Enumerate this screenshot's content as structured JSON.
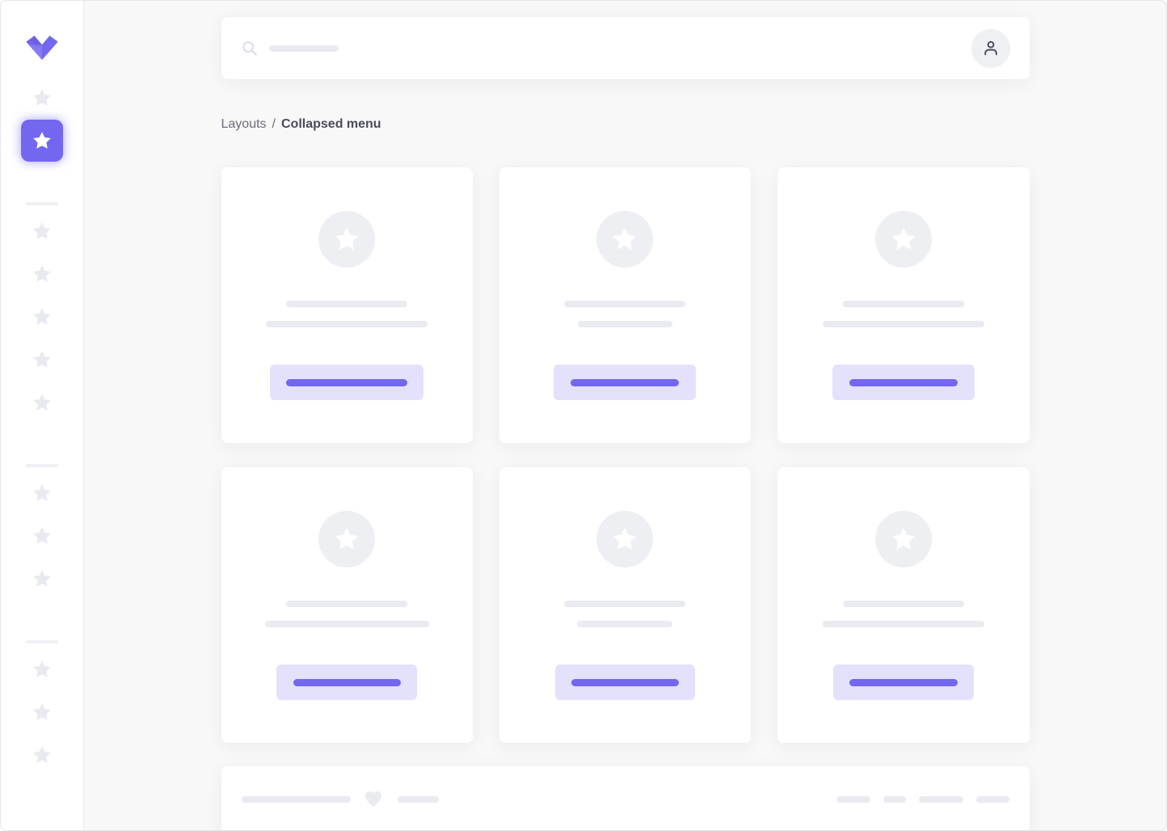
{
  "colors": {
    "primary": "#7367f0",
    "primary_soft": "#e4e1fc",
    "page_bg": "#f8f8f8",
    "surface": "#ffffff",
    "placeholder": "#e9ebf1",
    "placeholder_soft": "#eef0f4",
    "avatar_bg": "#edeff3",
    "star_muted": "#e8eaef",
    "text_muted": "#6e6b7b",
    "text_heading": "#4b4b5e",
    "border": "#ebe9f1"
  },
  "sidebar": {
    "logo_icon": "vuexy-v-logo",
    "sections": [
      {
        "items": [
          {
            "icon": "star",
            "active": false
          },
          {
            "icon": "star",
            "active": true
          }
        ]
      },
      {
        "items": [
          {
            "icon": "star"
          },
          {
            "icon": "star"
          },
          {
            "icon": "star"
          },
          {
            "icon": "star"
          },
          {
            "icon": "star"
          }
        ]
      },
      {
        "items": [
          {
            "icon": "star"
          },
          {
            "icon": "star"
          },
          {
            "icon": "star"
          }
        ]
      },
      {
        "items": [
          {
            "icon": "star"
          },
          {
            "icon": "star"
          },
          {
            "icon": "star"
          }
        ]
      }
    ]
  },
  "topbar": {
    "search_icon": "search",
    "search_line_w": 86,
    "avatar_icon": "person"
  },
  "breadcrumb": {
    "parent": "Layouts",
    "separator": "/",
    "current": "Collapsed menu"
  },
  "cards": [
    {
      "icon": "star",
      "title_w": 150,
      "subtitle_w": 200,
      "button_w": 190,
      "button_line_w": 150
    },
    {
      "icon": "star",
      "title_w": 150,
      "subtitle_w": 117,
      "button_w": 176,
      "button_line_w": 134
    },
    {
      "icon": "star",
      "title_w": 150,
      "subtitle_w": 200,
      "button_w": 176,
      "button_line_w": 134
    },
    {
      "icon": "star",
      "title_w": 150,
      "subtitle_w": 203,
      "button_w": 174,
      "button_line_w": 133
    },
    {
      "icon": "star",
      "title_w": 150,
      "subtitle_w": 118,
      "button_w": 173,
      "button_line_w": 133
    },
    {
      "icon": "star",
      "title_w": 150,
      "subtitle_w": 200,
      "button_w": 174,
      "button_line_w": 134
    }
  ],
  "footer": {
    "line1_w": 135,
    "heart_icon": "heart",
    "line2_w": 51,
    "right_pills": [
      42,
      28,
      55,
      41
    ]
  }
}
